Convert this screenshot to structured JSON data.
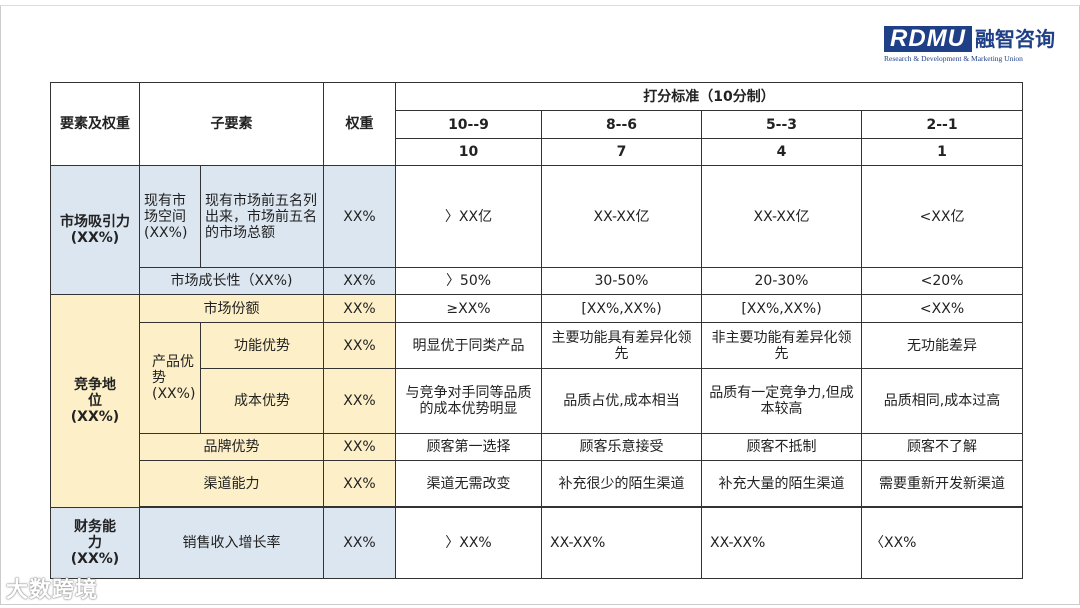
{
  "logo": {
    "brand": "RDMU",
    "chinese": "融智咨询",
    "subtitle": "Research & Development & Marketing Union"
  },
  "header": {
    "factor": "要素及权重",
    "sub_factor": "子要素",
    "weight": "权重",
    "scoring": "打分标准（10分制）",
    "ranges": [
      "10--9",
      "8--6",
      "5--3",
      "2--1"
    ],
    "scores": [
      "10",
      "7",
      "4",
      "1"
    ]
  },
  "rows": {
    "market": {
      "label": "市场吸引力(XX%)",
      "space": {
        "label": "现有市场空间(XX%)",
        "desc": "现有市场前五名列出来，市场前五名的市场总额",
        "weight": "XX%",
        "values": [
          "〉XX亿",
          "XX-XX亿",
          "XX-XX亿",
          "<XX亿"
        ]
      },
      "growth": {
        "label": "市场成长性（XX%)",
        "weight": "XX%",
        "values": [
          "〉50%",
          "30-50%",
          "20-30%",
          "<20%"
        ]
      }
    },
    "competition": {
      "label": "竞争地位(XX%)",
      "share": {
        "label": "市场份额",
        "weight": "XX%",
        "values": [
          "≥XX%",
          "[XX%,XX%)",
          "[XX%,XX%)",
          "<XX%"
        ]
      },
      "product": {
        "label": "产品优势(XX%)"
      },
      "function": {
        "label": "功能优势",
        "weight": "XX%",
        "values": [
          "明显优于同类产品",
          "主要功能具有差异化领先",
          "非主要功能有差异化领先",
          "无功能差异"
        ]
      },
      "cost": {
        "label": "成本优势",
        "weight": "XX%",
        "values": [
          "与竞争对手同等品质的成本优势明显",
          "品质占优,成本相当",
          "品质有一定竞争力,但成本较高",
          "品质相同,成本过高"
        ]
      },
      "brand": {
        "label": "品牌优势",
        "weight": "XX%",
        "values": [
          "顾客第一选择",
          "顾客乐意接受",
          "顾客不抵制",
          "顾客不了解"
        ]
      },
      "channel": {
        "label": "渠道能力",
        "weight": "XX%",
        "values": [
          "渠道无需改变",
          "补充很少的陌生渠道",
          "补充大量的陌生渠道",
          "需要重新开发新渠道"
        ]
      }
    },
    "finance": {
      "label": "财务能力(XX%)",
      "sales": {
        "label": "销售收入增长率",
        "weight": "XX%",
        "values": [
          "〉XX%",
          "XX-XX%",
          "XX-XX%",
          "〈XX%"
        ]
      }
    }
  },
  "watermark": "大数跨境",
  "colors": {
    "blue_fill": "#dce6f1",
    "yellow_fill": "#fdf0c8",
    "brand": "#1f3f86"
  }
}
